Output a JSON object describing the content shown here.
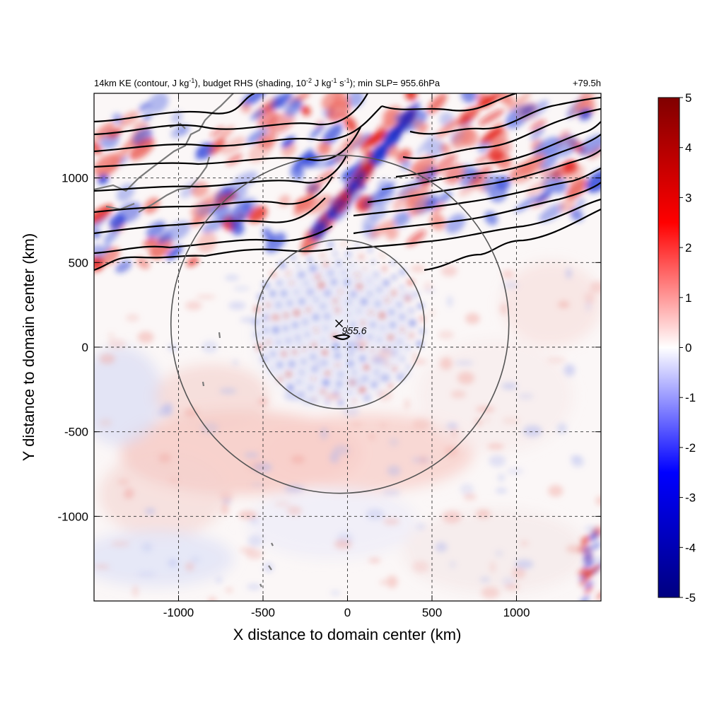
{
  "header": {
    "title_parts": [
      "14km KE (contour, J kg",
      "-1",
      "), budget RHS (shading, 10",
      "-2",
      " J kg",
      "-1",
      " s",
      "-1",
      "); min SLP= 955.6hPa"
    ],
    "time_label": "+79.5h"
  },
  "chart_data": {
    "type": "heatmap",
    "xlabel": "X distance to domain center (km)",
    "ylabel": "Y distance to domain center (km)",
    "xlim": [
      -1500,
      1500
    ],
    "ylim": [
      -1500,
      1500
    ],
    "x_ticks": [
      -1000,
      -500,
      0,
      500,
      1000
    ],
    "y_ticks": [
      -1000,
      -500,
      0,
      500,
      1000
    ],
    "x_tick_labels": [
      "-1000",
      "-500",
      "0",
      "500",
      "1000"
    ],
    "y_tick_labels": [
      "-1000",
      "-500",
      "0",
      "500",
      "1000"
    ],
    "grid": true,
    "colorbar": {
      "min": -5,
      "max": 5,
      "ticks": [
        5,
        4,
        3,
        2,
        1,
        0,
        -1,
        -2,
        -3,
        -4,
        -5
      ],
      "tick_labels": [
        "5",
        "4",
        "3",
        "2",
        "1",
        "0",
        "-1",
        "-2",
        "-3",
        "-4",
        "-5"
      ],
      "colors": [
        "#000080",
        "#0000ff",
        "#ffffff",
        "#ff0000",
        "#800000"
      ]
    },
    "storm_center": {
      "x": -50,
      "y": 140,
      "label": "955.6"
    },
    "range_circles": [
      {
        "center_x": -45,
        "center_y": 135,
        "radius": 500
      },
      {
        "center_x": -45,
        "center_y": 135,
        "radius": 1000
      }
    ],
    "legend": "none"
  },
  "colors": {
    "positive": "#e8201a",
    "negative": "#2a3bd6",
    "contour": "#000000",
    "circle": "#555555",
    "coast": "#7a7a7a"
  }
}
